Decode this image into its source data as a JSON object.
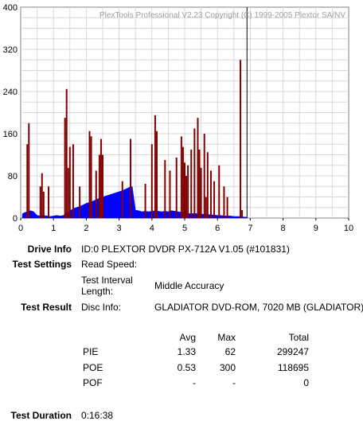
{
  "chart_data": {
    "type": "bar",
    "title": "PlexTools Professional V2.23 Copyright (C) 1999-2005 Plextor SA/NV",
    "xlim": [
      0,
      10
    ],
    "ylim": [
      0,
      400
    ],
    "x_ticks": [
      "0",
      "1",
      "2",
      "3",
      "4",
      "5",
      "6",
      "7",
      "8",
      "9",
      "10"
    ],
    "y_ticks": [
      "0",
      "80",
      "160",
      "240",
      "320",
      "400"
    ],
    "grid": true,
    "marker_x": 6.9,
    "series": [
      {
        "color": "#0000ff",
        "points": [
          [
            0.05,
            8
          ],
          [
            0.1,
            10
          ],
          [
            0.2,
            12
          ],
          [
            0.3,
            14
          ],
          [
            0.4,
            12
          ],
          [
            0.5,
            5
          ],
          [
            0.6,
            4
          ],
          [
            0.7,
            5
          ],
          [
            0.8,
            4
          ],
          [
            0.9,
            3
          ],
          [
            1.0,
            4
          ],
          [
            1.1,
            5
          ],
          [
            1.2,
            4
          ],
          [
            1.3,
            5
          ],
          [
            1.4,
            10
          ],
          [
            1.5,
            14
          ],
          [
            1.6,
            18
          ],
          [
            1.7,
            20
          ],
          [
            1.8,
            22
          ],
          [
            1.9,
            25
          ],
          [
            2.0,
            28
          ],
          [
            2.1,
            30
          ],
          [
            2.2,
            32
          ],
          [
            2.3,
            35
          ],
          [
            2.4,
            38
          ],
          [
            2.5,
            40
          ],
          [
            2.6,
            42
          ],
          [
            2.7,
            44
          ],
          [
            2.8,
            46
          ],
          [
            2.9,
            48
          ],
          [
            3.0,
            50
          ],
          [
            3.1,
            52
          ],
          [
            3.2,
            55
          ],
          [
            3.3,
            58
          ],
          [
            3.4,
            60
          ],
          [
            3.5,
            15
          ],
          [
            3.6,
            14
          ],
          [
            3.7,
            12
          ],
          [
            3.8,
            13
          ],
          [
            3.9,
            12
          ],
          [
            4.0,
            13
          ],
          [
            4.1,
            14
          ],
          [
            4.2,
            13
          ],
          [
            4.3,
            12
          ],
          [
            4.4,
            13
          ],
          [
            4.5,
            12
          ],
          [
            4.6,
            14
          ],
          [
            4.7,
            13
          ],
          [
            4.8,
            12
          ],
          [
            4.9,
            11
          ],
          [
            5.0,
            10
          ],
          [
            5.1,
            9
          ],
          [
            5.2,
            8
          ],
          [
            5.3,
            9
          ],
          [
            5.4,
            8
          ],
          [
            5.5,
            8
          ],
          [
            5.6,
            7
          ],
          [
            5.7,
            7
          ],
          [
            5.8,
            6
          ],
          [
            5.9,
            6
          ],
          [
            6.0,
            5
          ],
          [
            6.1,
            5
          ],
          [
            6.2,
            4
          ],
          [
            6.3,
            4
          ],
          [
            6.4,
            4
          ],
          [
            6.5,
            3
          ],
          [
            6.6,
            3
          ],
          [
            6.7,
            3
          ],
          [
            6.8,
            2
          ],
          [
            6.88,
            2
          ]
        ]
      },
      {
        "color": "#800000",
        "points": [
          [
            0.2,
            140
          ],
          [
            0.25,
            180
          ],
          [
            0.6,
            60
          ],
          [
            0.65,
            85
          ],
          [
            0.7,
            50
          ],
          [
            0.85,
            60
          ],
          [
            1.35,
            190
          ],
          [
            1.4,
            245
          ],
          [
            1.45,
            95
          ],
          [
            1.5,
            135
          ],
          [
            1.6,
            140
          ],
          [
            1.8,
            60
          ],
          [
            2.1,
            165
          ],
          [
            2.15,
            155
          ],
          [
            2.3,
            90
          ],
          [
            2.4,
            120
          ],
          [
            2.45,
            150
          ],
          [
            2.5,
            120
          ],
          [
            3.1,
            70
          ],
          [
            3.35,
            150
          ],
          [
            3.8,
            65
          ],
          [
            4.0,
            140
          ],
          [
            4.1,
            195
          ],
          [
            4.15,
            165
          ],
          [
            4.4,
            110
          ],
          [
            4.55,
            90
          ],
          [
            4.75,
            115
          ],
          [
            4.9,
            155
          ],
          [
            4.95,
            135
          ],
          [
            5.0,
            105
          ],
          [
            5.05,
            80
          ],
          [
            5.1,
            100
          ],
          [
            5.2,
            130
          ],
          [
            5.3,
            170
          ],
          [
            5.4,
            190
          ],
          [
            5.45,
            130
          ],
          [
            5.5,
            95
          ],
          [
            5.6,
            160
          ],
          [
            5.65,
            40
          ],
          [
            5.7,
            125
          ],
          [
            5.8,
            90
          ],
          [
            5.9,
            70
          ],
          [
            6.05,
            100
          ],
          [
            6.2,
            60
          ],
          [
            6.3,
            40
          ],
          [
            6.7,
            300
          ],
          [
            6.75,
            15
          ]
        ]
      }
    ]
  },
  "info": {
    "drive_label": "Drive Info",
    "drive_value": "ID:0 PLEXTOR DVDR PX-712A V1.05 (#101831)",
    "settings_label": "Test Settings",
    "read_speed_label": "Read Speed:",
    "interval_label_1": "Test Interval",
    "interval_label_2": "Length:",
    "interval_value": "Middle Accuracy",
    "result_label": "Test Result",
    "disc_info_label": "Disc Info:",
    "disc_info_value": "GLADIATOR DVD-ROM, 7020 MB (GLADIATOR)",
    "duration_label": "Test Duration",
    "duration_value": "0:16:38"
  },
  "table": {
    "headers": {
      "avg": "Avg",
      "max": "Max",
      "total": "Total"
    },
    "rows": [
      {
        "name": "PIE",
        "avg": "1.33",
        "max": "62",
        "total": "299247"
      },
      {
        "name": "POE",
        "avg": "0.53",
        "max": "300",
        "total": "118695"
      },
      {
        "name": "POF",
        "avg": "-",
        "max": "-",
        "total": "0"
      }
    ]
  }
}
